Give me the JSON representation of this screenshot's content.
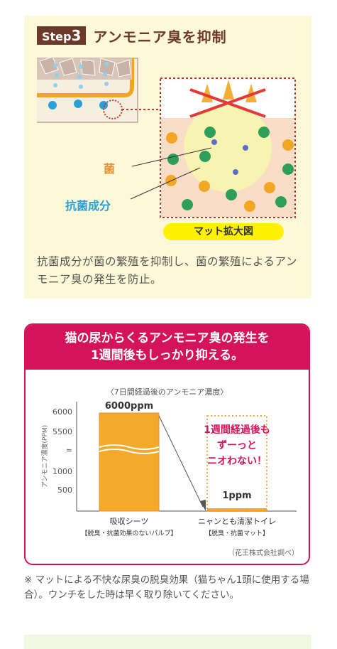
{
  "step": {
    "badge_prefix": "Step",
    "badge_num": "3",
    "title": "アンモニア臭を抑制",
    "label_kin": "菌",
    "label_kokin": "抗菌成分",
    "mat_label": "マット拡大図",
    "description": "抗菌成分が菌の繁殖を抑制し、菌の繁殖によるアンモニア臭の発生を防止。"
  },
  "chart_card": {
    "headline_1": "猫の尿からくるアンモニア臭の発生を",
    "headline_2": "1週間後もしっかり抑える。",
    "source": "（花王株式会社調べ）"
  },
  "chart_data": {
    "type": "bar",
    "title": "〈7日間経過後のアンモニア濃度〉",
    "ylabel": "アンモニア濃度(PPM)",
    "y_ticks": [
      "6000",
      "5500",
      "≈",
      "1000",
      "500"
    ],
    "categories": [
      "吸収シーツ",
      "ニャンとも清潔トイレ"
    ],
    "category_sublabels": [
      "【脱臭・抗菌効果のないパルプ】",
      "【脱臭・抗菌マット】"
    ],
    "values": [
      6000,
      1
    ],
    "data_labels": [
      "6000ppm",
      "1ppm"
    ],
    "annotation_lines": [
      "1週間経過後も",
      "ずーっと",
      "ニオわない！"
    ],
    "colors": {
      "bar": "#f4a92a",
      "bar_edge": "#e8902c",
      "annotation": "#d4145a"
    }
  },
  "footnote": "※ マットによる不快な尿臭の脱臭効果（猫ちゃん1頭に使用する場合）。ウンチをした時は早く取り除いてください。"
}
